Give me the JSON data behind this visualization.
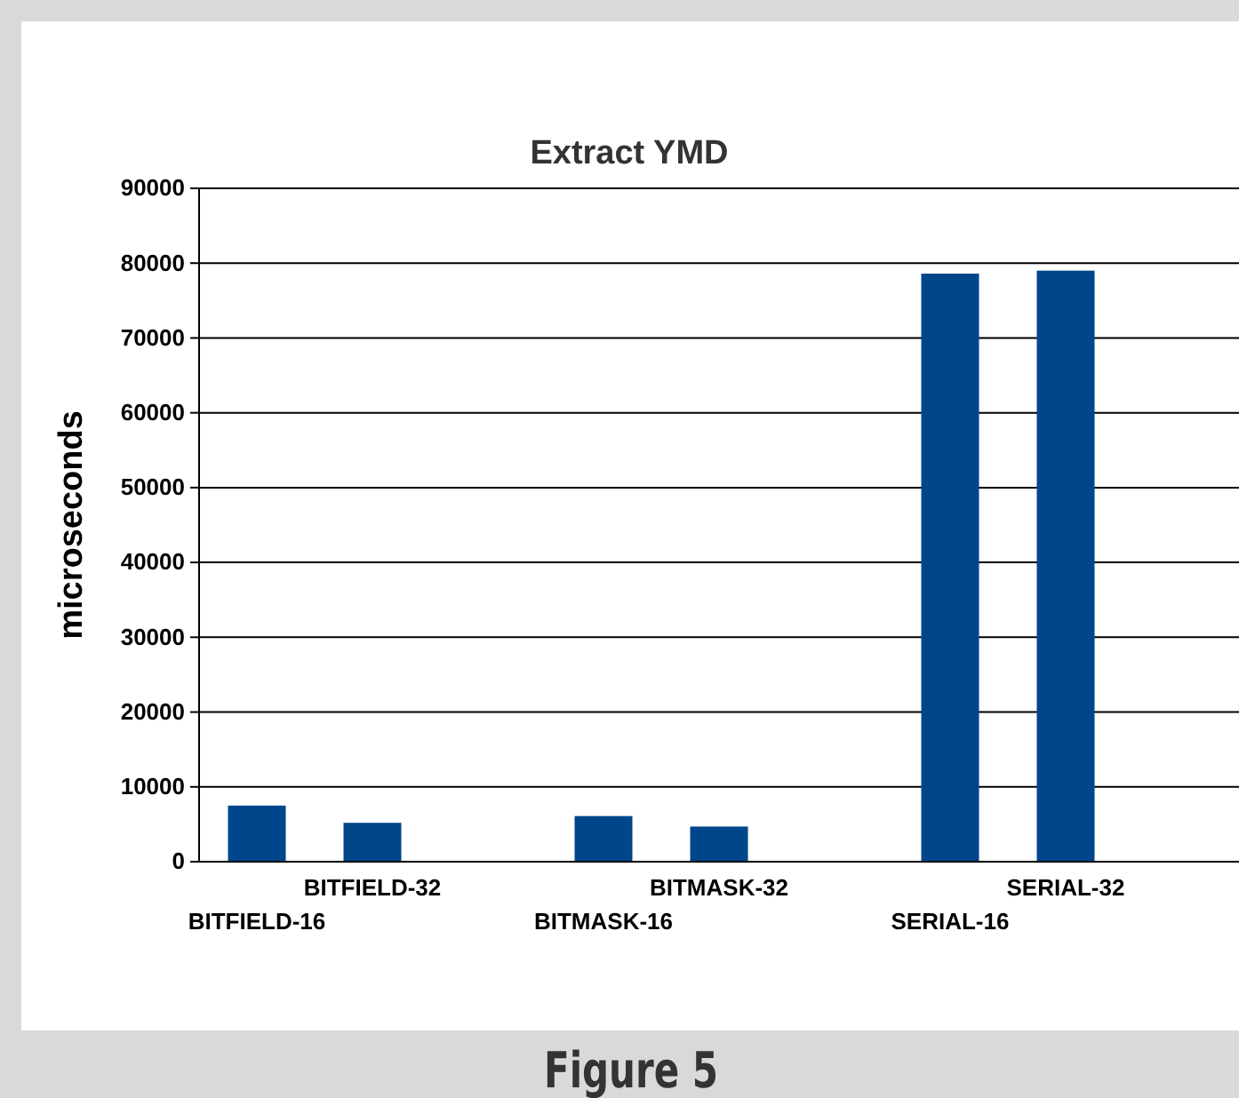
{
  "chart_data": {
    "type": "bar",
    "title": "Extract YMD",
    "ylabel": "microseconds",
    "categories": [
      "BITFIELD-16",
      "BITFIELD-32",
      null,
      "BITMASK-16",
      "BITMASK-32",
      null,
      "SERIAL-16",
      "SERIAL-32",
      null
    ],
    "values": [
      7500,
      5200,
      null,
      6100,
      4700,
      null,
      78600,
      79000,
      null
    ],
    "color": "#00468b",
    "ylim": [
      0,
      90000
    ],
    "yticks": [
      0,
      10000,
      20000,
      30000,
      40000,
      50000,
      60000,
      70000,
      80000,
      90000
    ],
    "grid": "y",
    "annotations": [
      "Figure 5"
    ]
  }
}
